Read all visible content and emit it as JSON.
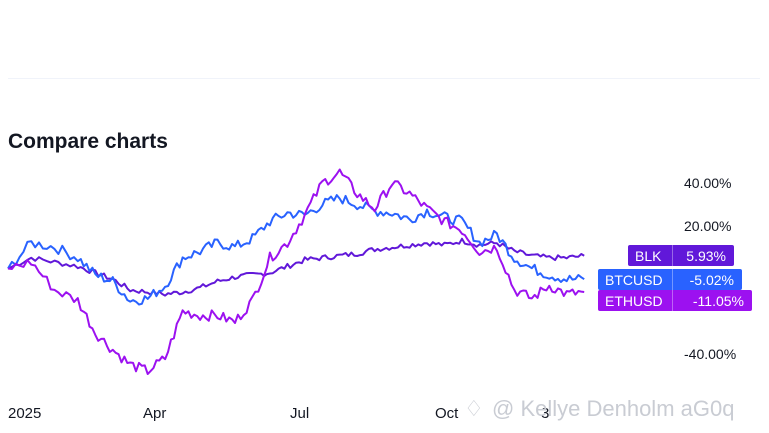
{
  "header": {
    "title": "Compare charts"
  },
  "watermark": {
    "text": "@ Kellye Denholm aG0q"
  },
  "chart_data": {
    "type": "line",
    "ylim": [
      -50,
      50
    ],
    "y_ticks": [
      "40.00%",
      "20.00%",
      "-40.00%"
    ],
    "x_ticks": [
      "2025",
      "Apr",
      "Jul",
      "Oct",
      "3"
    ],
    "grid": false,
    "series": [
      {
        "name": "BLK",
        "color": "#6118d9",
        "value_label": "5.93%",
        "points": [
          [
            0,
            0
          ],
          [
            4,
            5
          ],
          [
            8,
            3
          ],
          [
            12,
            1
          ],
          [
            15,
            -2
          ],
          [
            18,
            -5
          ],
          [
            21,
            -10
          ],
          [
            24,
            -11
          ],
          [
            27,
            -12
          ],
          [
            30,
            -11
          ],
          [
            33,
            -9
          ],
          [
            36,
            -6
          ],
          [
            39,
            -4
          ],
          [
            42,
            -3
          ],
          [
            45,
            -2
          ],
          [
            48,
            1
          ],
          [
            51,
            4
          ],
          [
            54,
            5
          ],
          [
            57,
            6
          ],
          [
            60,
            7
          ],
          [
            63,
            9
          ],
          [
            66,
            10
          ],
          [
            69,
            11
          ],
          [
            72,
            12
          ],
          [
            75,
            11
          ],
          [
            78,
            13
          ],
          [
            81,
            11
          ],
          [
            84,
            12
          ],
          [
            87,
            8
          ],
          [
            90,
            6
          ],
          [
            93,
            5
          ],
          [
            96,
            5
          ],
          [
            99,
            6
          ]
        ]
      },
      {
        "name": "BTCUSD",
        "color": "#2962ff",
        "value_label": "-5.02%",
        "points": [
          [
            0,
            0
          ],
          [
            4,
            12
          ],
          [
            8,
            10
          ],
          [
            12,
            5
          ],
          [
            15,
            -3
          ],
          [
            18,
            -6
          ],
          [
            21,
            -15
          ],
          [
            24,
            -14
          ],
          [
            27,
            -8
          ],
          [
            30,
            5
          ],
          [
            33,
            8
          ],
          [
            36,
            12
          ],
          [
            39,
            10
          ],
          [
            42,
            14
          ],
          [
            45,
            22
          ],
          [
            48,
            26
          ],
          [
            51,
            25
          ],
          [
            54,
            30
          ],
          [
            57,
            33
          ],
          [
            60,
            30
          ],
          [
            63,
            27
          ],
          [
            66,
            26
          ],
          [
            69,
            23
          ],
          [
            72,
            27
          ],
          [
            75,
            24
          ],
          [
            78,
            22
          ],
          [
            81,
            12
          ],
          [
            84,
            16
          ],
          [
            87,
            5
          ],
          [
            90,
            0
          ],
          [
            93,
            -3
          ],
          [
            96,
            -5
          ],
          [
            99,
            -5
          ]
        ]
      },
      {
        "name": "ETHUSD",
        "color": "#9c11f0",
        "value_label": "-11.05%",
        "points": [
          [
            0,
            0
          ],
          [
            4,
            3
          ],
          [
            8,
            -10
          ],
          [
            12,
            -15
          ],
          [
            15,
            -30
          ],
          [
            18,
            -38
          ],
          [
            21,
            -45
          ],
          [
            24,
            -48
          ],
          [
            27,
            -42
          ],
          [
            30,
            -20
          ],
          [
            33,
            -22
          ],
          [
            36,
            -22
          ],
          [
            39,
            -25
          ],
          [
            42,
            -15
          ],
          [
            45,
            5
          ],
          [
            48,
            12
          ],
          [
            51,
            25
          ],
          [
            54,
            40
          ],
          [
            57,
            45
          ],
          [
            60,
            35
          ],
          [
            63,
            28
          ],
          [
            66,
            40
          ],
          [
            69,
            35
          ],
          [
            72,
            28
          ],
          [
            75,
            22
          ],
          [
            78,
            18
          ],
          [
            81,
            8
          ],
          [
            84,
            10
          ],
          [
            87,
            -10
          ],
          [
            90,
            -14
          ],
          [
            93,
            -8
          ],
          [
            96,
            -12
          ],
          [
            99,
            -11
          ]
        ]
      }
    ]
  }
}
